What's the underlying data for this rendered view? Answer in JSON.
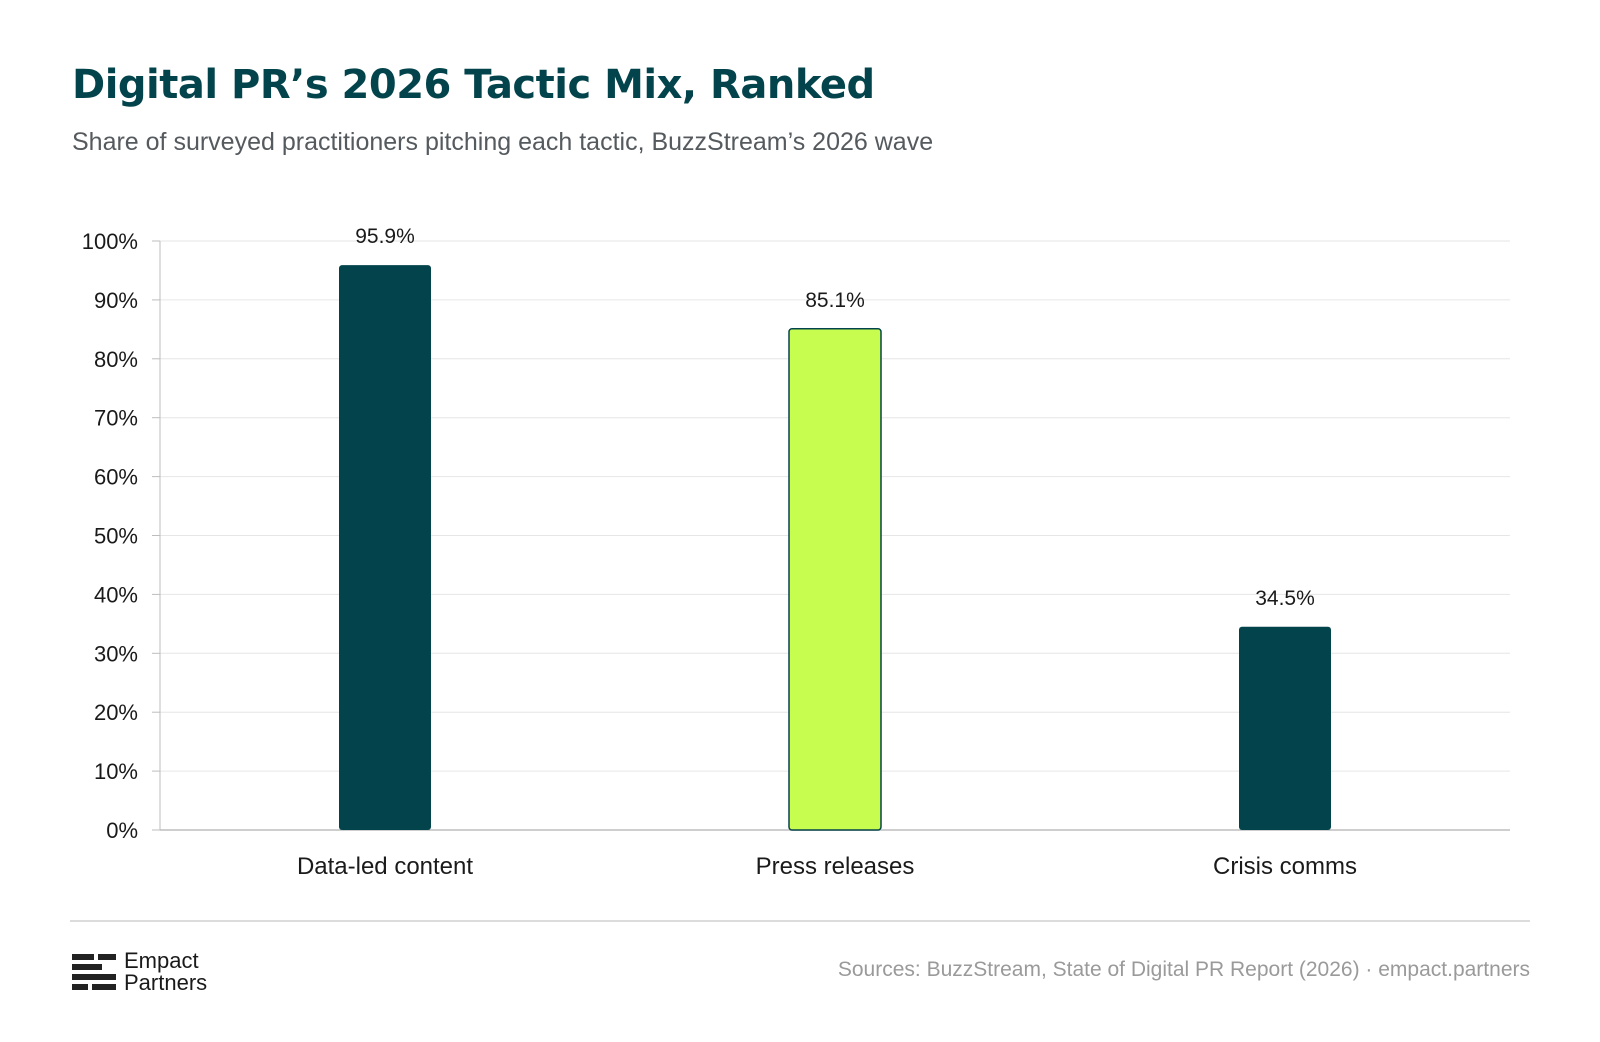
{
  "chart_data": {
    "type": "bar",
    "title": "Digital PR’s 2026 Tactic Mix, Ranked",
    "subtitle": "Share of surveyed practitioners pitching each tactic, BuzzStream’s 2026 wave",
    "categories": [
      "Data-led content",
      "Press releases",
      "Crisis comms"
    ],
    "values": [
      95.9,
      85.1,
      34.5
    ],
    "value_labels": [
      "95.9%",
      "85.1%",
      "34.5%"
    ],
    "bar_colors": [
      "#03444c",
      "#c6fd4f",
      "#03444c"
    ],
    "ylim": [
      0,
      100
    ],
    "yticks": [
      0,
      10,
      20,
      30,
      40,
      50,
      60,
      70,
      80,
      90,
      100
    ],
    "ytick_labels": [
      "0%",
      "10%",
      "20%",
      "30%",
      "40%",
      "50%",
      "60%",
      "70%",
      "80%",
      "90%",
      "100%"
    ],
    "xlabel": "",
    "ylabel": "",
    "grid": true
  },
  "footer": {
    "logo_line1": "Empact",
    "logo_line2": "Partners",
    "source": "Sources: BuzzStream, State of Digital PR Report (2026) · empact.partners"
  },
  "colors": {
    "title": "#03444c",
    "accent": "#c6fd4f",
    "primary_bar": "#03444c"
  }
}
